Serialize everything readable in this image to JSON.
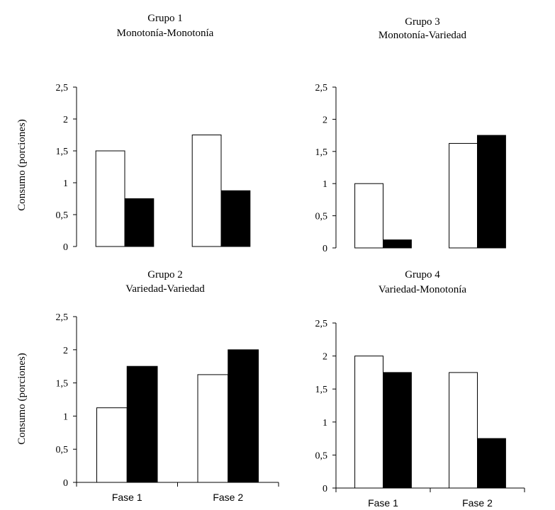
{
  "chart_data": [
    {
      "type": "bar",
      "title_line1": "Grupo 1",
      "title_line2": "Monotonía-Monotonía",
      "ylabel": "Consumo (porciones)",
      "categories": [
        "Fase 1",
        "Fase 2"
      ],
      "show_categories": false,
      "ylim": [
        0,
        2.5
      ],
      "yticks": [
        "0",
        "0,5",
        "1",
        "1,5",
        "2",
        "2,5"
      ],
      "series": [
        {
          "fill": "#ffffff",
          "values": [
            1.5,
            1.75
          ]
        },
        {
          "fill": "#000000",
          "values": [
            0.75,
            0.875
          ]
        }
      ]
    },
    {
      "type": "bar",
      "title_line1": "Grupo 3",
      "title_line2": "Monotonía-Variedad",
      "ylabel": "",
      "categories": [
        "Fase 1",
        "Fase 2"
      ],
      "show_categories": false,
      "ylim": [
        0,
        2.5
      ],
      "yticks": [
        "0",
        "0,5",
        "1",
        "1,5",
        "2",
        "2,5"
      ],
      "series": [
        {
          "fill": "#ffffff",
          "values": [
            1.0,
            1.625
          ]
        },
        {
          "fill": "#000000",
          "values": [
            0.125,
            1.75
          ]
        }
      ]
    },
    {
      "type": "bar",
      "title_line1": "Grupo 2",
      "title_line2": "Variedad-Variedad",
      "ylabel": "Consumo (porciones)",
      "categories": [
        "Fase 1",
        "Fase 2"
      ],
      "show_categories": true,
      "ylim": [
        0,
        2.5
      ],
      "yticks": [
        "0",
        "0,5",
        "1",
        "1,5",
        "2",
        "2,5"
      ],
      "series": [
        {
          "fill": "#ffffff",
          "values": [
            1.125,
            1.625
          ]
        },
        {
          "fill": "#000000",
          "values": [
            1.75,
            2.0
          ]
        }
      ]
    },
    {
      "type": "bar",
      "title_line1": "Grupo 4",
      "title_line2": "Variedad-Monotonía",
      "ylabel": "",
      "categories": [
        "Fase 1",
        "Fase 2"
      ],
      "show_categories": true,
      "ylim": [
        0,
        2.5
      ],
      "yticks": [
        "0",
        "0,5",
        "1",
        "1,5",
        "2",
        "2,5"
      ],
      "series": [
        {
          "fill": "#ffffff",
          "values": [
            2.0,
            1.75
          ]
        },
        {
          "fill": "#000000",
          "values": [
            1.75,
            0.75
          ]
        }
      ]
    }
  ]
}
